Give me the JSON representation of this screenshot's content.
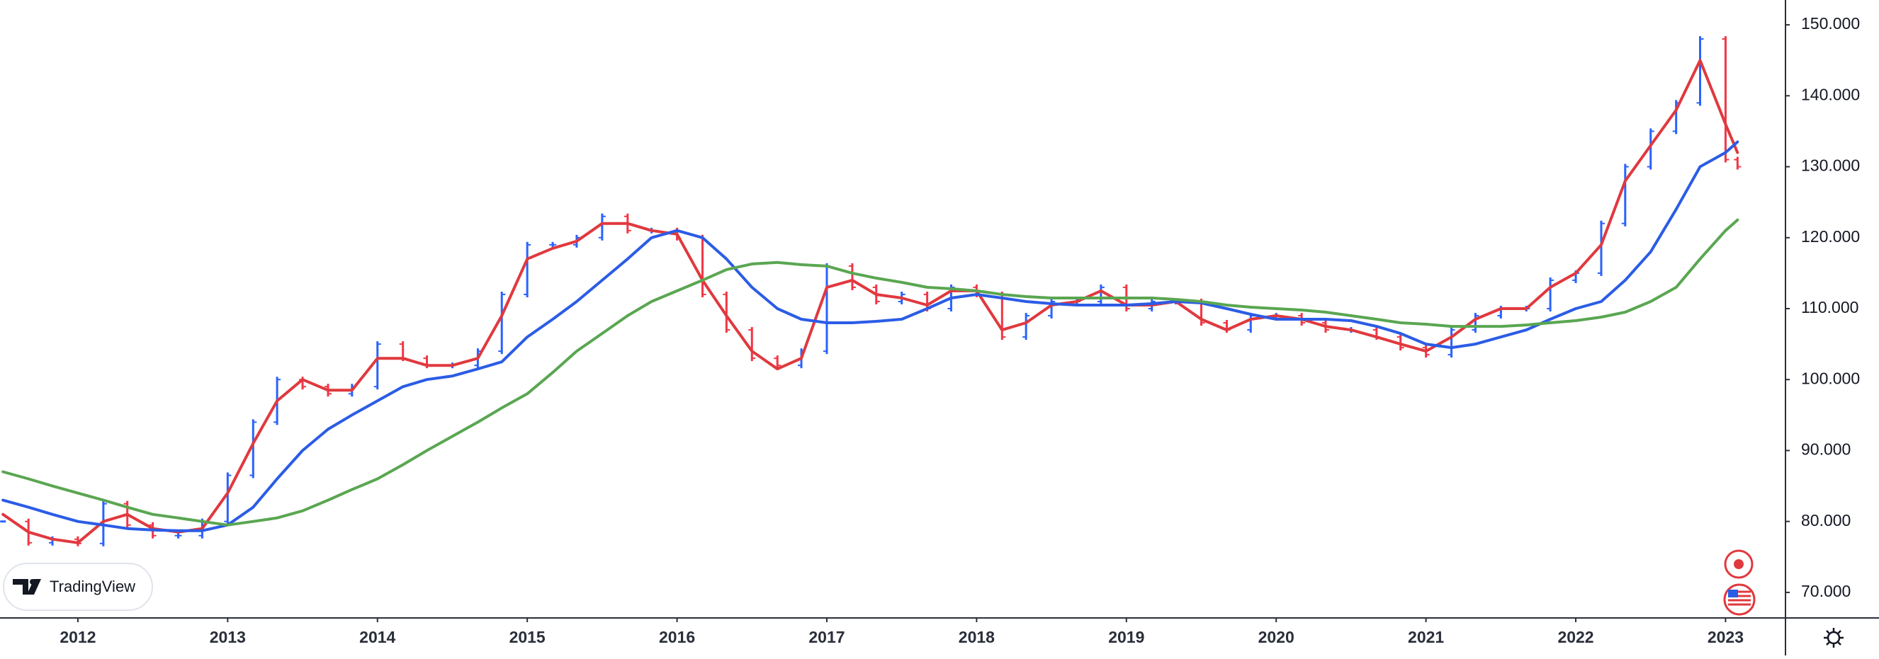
{
  "chart_data": {
    "type": "line",
    "watermark": "TradingView",
    "x": [
      2011.5,
      2011.67,
      2011.83,
      2012,
      2012.17,
      2012.33,
      2012.5,
      2012.67,
      2012.83,
      2013,
      2013.17,
      2013.33,
      2013.5,
      2013.67,
      2013.83,
      2014,
      2014.17,
      2014.33,
      2014.5,
      2014.67,
      2014.83,
      2015,
      2015.17,
      2015.33,
      2015.5,
      2015.67,
      2015.83,
      2016,
      2016.17,
      2016.33,
      2016.5,
      2016.67,
      2016.83,
      2017,
      2017.17,
      2017.33,
      2017.5,
      2017.67,
      2017.83,
      2018,
      2018.17,
      2018.33,
      2018.5,
      2018.67,
      2018.83,
      2019,
      2019.17,
      2019.33,
      2019.5,
      2019.67,
      2019.83,
      2020,
      2020.17,
      2020.33,
      2020.5,
      2020.67,
      2020.83,
      2021,
      2021.17,
      2021.33,
      2021.5,
      2021.67,
      2021.83,
      2022,
      2022.17,
      2022.33,
      2022.5,
      2022.67,
      2022.83,
      2023,
      2023.08
    ],
    "series": [
      {
        "type": "bar",
        "up_color": "#2962ff",
        "down_color": "#f23645",
        "values": [
          80,
          77,
          77.5,
          76.9,
          82.5,
          79.5,
          78,
          78,
          80,
          86.5,
          94,
          100,
          99,
          98,
          99,
          105,
          103,
          102,
          102,
          104,
          112,
          119,
          119,
          120,
          123,
          121,
          121,
          120,
          112,
          107,
          103,
          102,
          104,
          116,
          113,
          111,
          112,
          110,
          113,
          112,
          106,
          109,
          111,
          111,
          113,
          110,
          111,
          111,
          108,
          107,
          109,
          109,
          108,
          107,
          107,
          106,
          104.5,
          103.5,
          107,
          109,
          110,
          110,
          114,
          115,
          122,
          130,
          135,
          139,
          148,
          131,
          130
        ]
      },
      {
        "type": "line",
        "color": "#e0393e",
        "values": [
          81,
          78.5,
          77.5,
          77,
          80,
          81,
          79,
          78.5,
          79,
          84,
          91,
          97,
          100,
          98.5,
          98.5,
          103,
          103,
          102,
          102,
          103,
          109,
          117,
          118.5,
          119.5,
          122,
          122,
          121,
          120.5,
          114,
          109,
          104,
          101.5,
          103,
          113,
          114,
          112,
          111.5,
          110.5,
          112.5,
          112.5,
          107,
          108,
          110.5,
          111,
          112.5,
          110.5,
          110.5,
          111,
          108.5,
          107,
          108.5,
          109,
          108.5,
          107.5,
          107,
          106,
          105,
          104,
          106,
          108.5,
          110,
          110,
          113,
          115,
          119,
          128,
          133,
          138,
          145,
          136,
          132
        ]
      },
      {
        "type": "line",
        "color": "#2b5ce6",
        "values": [
          83,
          82,
          81,
          80,
          79.5,
          79,
          78.8,
          78.7,
          78.7,
          79.5,
          82,
          86,
          90,
          93,
          95,
          97,
          99,
          100,
          100.5,
          101.5,
          102.5,
          106,
          108.5,
          111,
          114,
          117,
          120,
          121,
          120,
          117,
          113,
          110,
          108.5,
          108,
          108,
          108.2,
          108.5,
          110,
          111.5,
          112,
          111.5,
          111,
          110.7,
          110.5,
          110.5,
          110.5,
          110.7,
          111,
          110.8,
          110,
          109.2,
          108.5,
          108.5,
          108.5,
          108.3,
          107.5,
          106.5,
          105,
          104.5,
          105,
          106,
          107,
          108.5,
          110,
          111,
          114,
          118,
          124,
          130,
          132,
          133.5
        ]
      },
      {
        "type": "line",
        "color": "#5aa651",
        "values": [
          87,
          86,
          85,
          84,
          83,
          82,
          81,
          80.5,
          80,
          79.5,
          80,
          80.5,
          81.5,
          83,
          84.5,
          86,
          88,
          90,
          92,
          94,
          96,
          98,
          101,
          104,
          106.5,
          109,
          111,
          112.5,
          114,
          115.5,
          116.3,
          116.5,
          116.2,
          116,
          115,
          114.3,
          113.7,
          113,
          112.8,
          112.5,
          112,
          111.7,
          111.5,
          111.5,
          111.5,
          111.5,
          111.5,
          111.3,
          111,
          110.5,
          110.2,
          110,
          109.8,
          109.5,
          109,
          108.5,
          108,
          107.8,
          107.5,
          107.5,
          107.5,
          107.7,
          108,
          108.3,
          108.8,
          109.5,
          111,
          113,
          117,
          121,
          122.5
        ]
      }
    ],
    "xlim": [
      2011.48,
      2023.4
    ],
    "xticks": [
      2012,
      2013,
      2014,
      2015,
      2016,
      2017,
      2018,
      2019,
      2020,
      2021,
      2022,
      2023
    ],
    "ylim": [
      66.4,
      153.5
    ],
    "yticks": [
      {
        "value": 70,
        "label": "70.000"
      },
      {
        "value": 80,
        "label": "80.000"
      },
      {
        "value": 90,
        "label": "90.000"
      },
      {
        "value": 100,
        "label": "100.000"
      },
      {
        "value": 110,
        "label": "110.000"
      },
      {
        "value": 120,
        "label": "120.000"
      },
      {
        "value": 130,
        "label": "130.000"
      },
      {
        "value": 140,
        "label": "140.000"
      },
      {
        "value": 150,
        "label": "150.000"
      }
    ],
    "grid": false
  }
}
